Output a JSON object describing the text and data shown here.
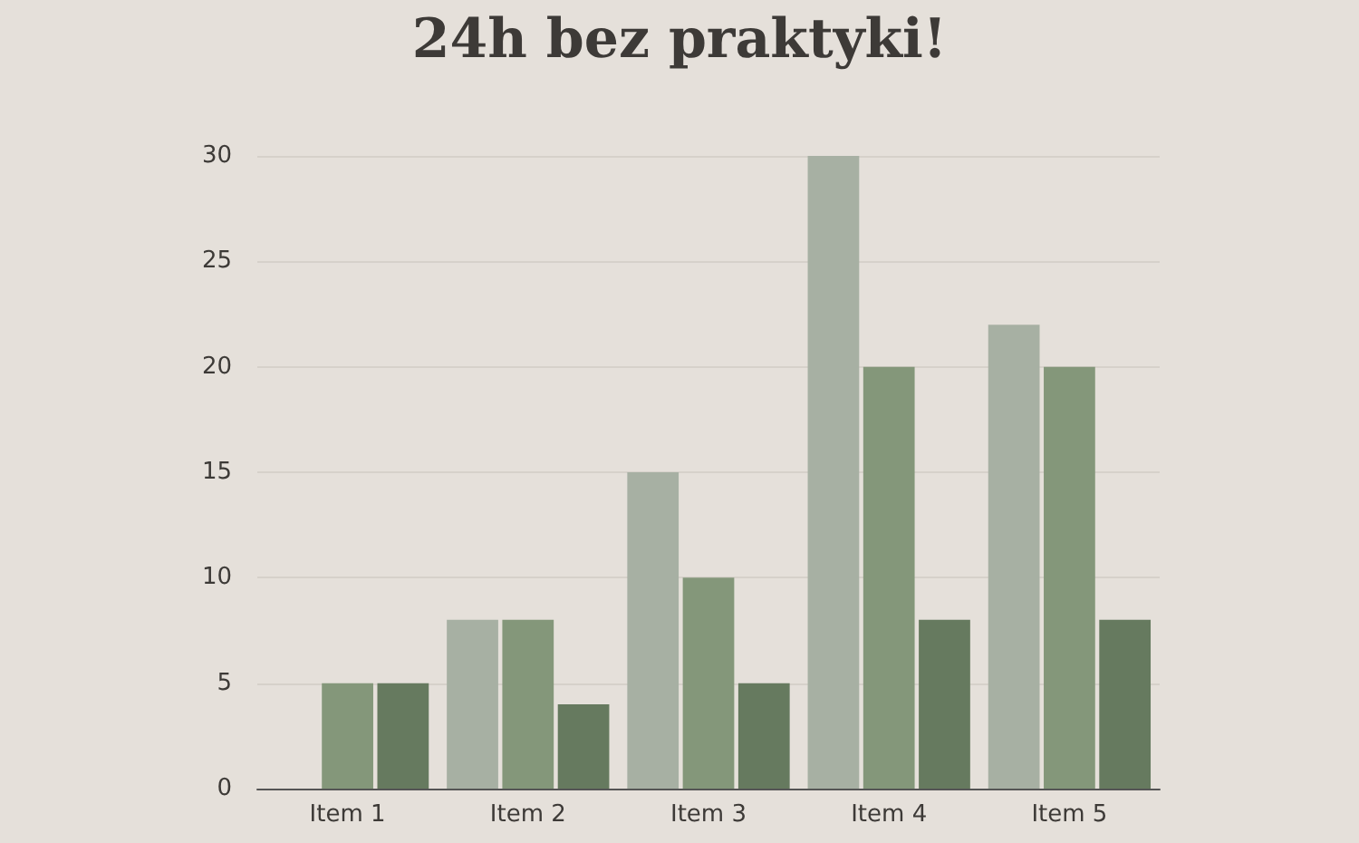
{
  "chart_data": {
    "type": "bar",
    "title": "24h bez praktyki!",
    "categories": [
      "Item 1",
      "Item 2",
      "Item 3",
      "Item 4",
      "Item 5"
    ],
    "series": [
      {
        "color": "#a7b0a3",
        "values": [
          0,
          8,
          15,
          30,
          22
        ]
      },
      {
        "color": "#84977a",
        "values": [
          5,
          8,
          10,
          20,
          20
        ]
      },
      {
        "color": "#667a5f",
        "values": [
          5,
          4,
          5,
          8,
          8
        ]
      }
    ],
    "ylim": [
      0,
      30
    ],
    "yticks": [
      0,
      5,
      10,
      15,
      20,
      25,
      30
    ],
    "grid": "y"
  }
}
